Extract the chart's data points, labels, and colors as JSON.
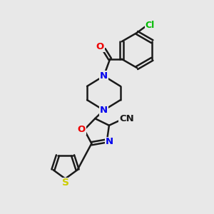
{
  "background_color": "#e8e8e8",
  "bond_color": "#1a1a1a",
  "atom_colors": {
    "N": "#0000ee",
    "O": "#ee0000",
    "S": "#cccc00",
    "Cl": "#00bb00",
    "C": "#1a1a1a"
  },
  "figsize": [
    3.0,
    3.0
  ],
  "dpi": 100
}
